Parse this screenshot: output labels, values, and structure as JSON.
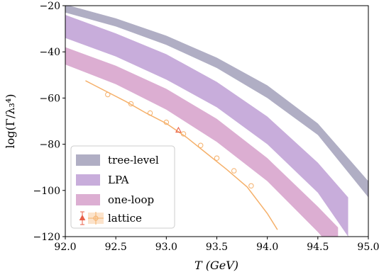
{
  "chart_data": {
    "type": "area",
    "title": "",
    "xlabel": "T (GeV)",
    "ylabel": "log(Γ/λ₃⁴)",
    "xlim": [
      92.0,
      95.0
    ],
    "ylim": [
      -120,
      -20
    ],
    "xticks": [
      92.0,
      92.5,
      93.0,
      93.5,
      94.0,
      94.5,
      95.0
    ],
    "xtick_labels": [
      "92.0",
      "92.5",
      "93.0",
      "93.5",
      "94.0",
      "94.5",
      "95.0"
    ],
    "yticks": [
      -120,
      -100,
      -80,
      -60,
      -40,
      -20
    ],
    "ytick_labels": [
      "−120",
      "−100",
      "−80",
      "−60",
      "−40",
      "−20"
    ],
    "grid": false,
    "legend_position": "lower-left",
    "series": [
      {
        "name": "tree-level",
        "kind": "band",
        "color": "#b0aec4",
        "x": [
          92.0,
          92.5,
          93.0,
          93.5,
          94.0,
          94.5,
          95.0
        ],
        "lower": [
          -23.0,
          -29.0,
          -37.0,
          -47.0,
          -60.0,
          -76.0,
          -103.0
        ],
        "upper": [
          -19.5,
          -25.5,
          -33.0,
          -42.5,
          -54.5,
          -71.0,
          -96.0
        ]
      },
      {
        "name": "LPA",
        "kind": "band",
        "color": "#c8addb",
        "x": [
          92.0,
          92.5,
          93.0,
          93.5,
          94.0,
          94.5,
          94.8
        ],
        "lower": [
          -34.0,
          -42.0,
          -52.0,
          -64.0,
          -80.0,
          -101.0,
          -120.0
        ],
        "upper": [
          -24.0,
          -32.0,
          -41.0,
          -53.0,
          -68.0,
          -88.0,
          -103.0
        ]
      },
      {
        "name": "one-loop",
        "kind": "band",
        "color": "#dcaed2",
        "x": [
          92.0,
          92.5,
          93.0,
          93.5,
          94.0,
          94.5,
          94.7
        ],
        "lower": [
          -45.5,
          -54.0,
          -65.0,
          -79.0,
          -96.0,
          -118.0,
          -128.0
        ],
        "upper": [
          -38.0,
          -46.0,
          -56.0,
          -69.0,
          -86.0,
          -107.0,
          -116.0
        ]
      },
      {
        "name": "lattice",
        "kind": "fit-line",
        "color": "#f5b06a",
        "x": [
          92.2,
          92.4,
          92.6,
          92.8,
          93.0,
          93.2,
          93.4,
          93.6,
          93.8,
          94.0,
          94.1
        ],
        "y": [
          -52.5,
          -57.0,
          -61.5,
          -66.5,
          -71.0,
          -77.0,
          -84.0,
          -91.0,
          -98.5,
          -110.0,
          -117.0
        ]
      }
    ],
    "lattice_points": {
      "name": "lattice",
      "color": "#f5b06a",
      "x": [
        92.42,
        92.65,
        92.84,
        93.0,
        93.17,
        93.34,
        93.5,
        93.67,
        93.84
      ],
      "y": [
        -58.5,
        -62.5,
        -66.5,
        -70.5,
        -75.5,
        -80.5,
        -86.0,
        -91.5,
        -98.0
      ]
    },
    "lattice_triangle": {
      "color": "#e8604a",
      "x": 93.12,
      "y": -74.0
    }
  }
}
